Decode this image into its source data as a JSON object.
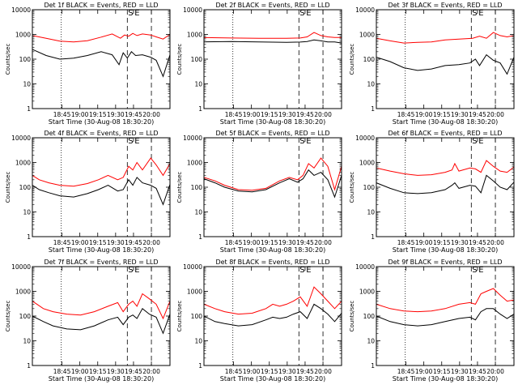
{
  "chart_data": [
    {
      "type": "line",
      "title": "Det 1f BLACK = Events, RED = LLD",
      "xlabel": "Start Time (30-Aug-08 18:30:20)",
      "ylabel": "Counts/sec",
      "yscale": "log",
      "ylim": [
        1,
        10000
      ],
      "xticks": [
        "18:45",
        "19:00",
        "19:15",
        "19:30",
        "19:45",
        "20:00"
      ],
      "yticks": [
        "1",
        "10",
        "100",
        "1000",
        "10000"
      ],
      "markers": [
        "S",
        "E"
      ],
      "series": [
        {
          "color": "#ff0000",
          "x": [
            0,
            0.1,
            0.2,
            0.3,
            0.4,
            0.5,
            0.58,
            0.64,
            0.67,
            0.7,
            0.73,
            0.76,
            0.8,
            0.86,
            0.9,
            0.95,
            1
          ],
          "values": [
            900,
            700,
            540,
            500,
            560,
            780,
            1050,
            700,
            950,
            850,
            1100,
            900,
            1050,
            950,
            800,
            650,
            1000
          ]
        },
        {
          "color": "#000000",
          "x": [
            0,
            0.1,
            0.2,
            0.3,
            0.4,
            0.5,
            0.58,
            0.63,
            0.66,
            0.69,
            0.72,
            0.75,
            0.8,
            0.86,
            0.9,
            0.95,
            1
          ],
          "values": [
            250,
            140,
            100,
            110,
            140,
            200,
            150,
            60,
            180,
            110,
            200,
            140,
            150,
            120,
            90,
            20,
            150
          ]
        }
      ]
    },
    {
      "type": "line",
      "title": "Det 2f BLACK = Events, RED = LLD",
      "xlabel": "Start Time (30-Aug-08 18:30:20)",
      "ylabel": "Counts/sec",
      "yscale": "log",
      "ylim": [
        1,
        10000
      ],
      "xticks": [
        "18:45",
        "19:00",
        "19:15",
        "19:30",
        "19:45",
        "20:00"
      ],
      "yticks": [
        "1",
        "10",
        "100",
        "1000",
        "10000"
      ],
      "markers": [
        "S",
        "E"
      ],
      "series": [
        {
          "color": "#ff0000",
          "x": [
            0,
            0.2,
            0.4,
            0.6,
            0.7,
            0.75,
            0.8,
            0.85,
            0.9,
            0.95,
            1
          ],
          "values": [
            750,
            720,
            700,
            700,
            720,
            800,
            1200,
            900,
            800,
            750,
            750
          ]
        },
        {
          "color": "#000000",
          "x": [
            0,
            0.2,
            0.4,
            0.6,
            0.7,
            0.75,
            0.8,
            0.85,
            0.9,
            0.95,
            1
          ],
          "values": [
            500,
            520,
            500,
            480,
            490,
            520,
            600,
            550,
            500,
            500,
            450
          ]
        }
      ]
    },
    {
      "type": "line",
      "title": "Det 3f BLACK = Events, RED = LLD",
      "xlabel": "Start Time (30-Aug-08 18:30:20)",
      "ylabel": "Counts/sec",
      "yscale": "log",
      "ylim": [
        1,
        10000
      ],
      "xticks": [
        "18:45",
        "19:00",
        "19:15",
        "19:30",
        "19:45",
        "20:00"
      ],
      "yticks": [
        "1",
        "10",
        "100",
        "1000",
        "10000"
      ],
      "markers": [
        "S",
        "E"
      ],
      "series": [
        {
          "color": "#ff0000",
          "x": [
            0,
            0.1,
            0.2,
            0.3,
            0.4,
            0.5,
            0.6,
            0.7,
            0.75,
            0.8,
            0.85,
            0.9,
            0.95,
            1
          ],
          "values": [
            700,
            550,
            450,
            480,
            500,
            600,
            650,
            700,
            850,
            700,
            1200,
            900,
            800,
            900
          ]
        },
        {
          "color": "#000000",
          "x": [
            0,
            0.1,
            0.2,
            0.3,
            0.4,
            0.5,
            0.6,
            0.68,
            0.72,
            0.75,
            0.8,
            0.85,
            0.9,
            0.95,
            1
          ],
          "values": [
            120,
            80,
            45,
            35,
            40,
            55,
            60,
            70,
            100,
            55,
            150,
            90,
            70,
            25,
            120
          ]
        }
      ]
    },
    {
      "type": "line",
      "title": "Det 4f BLACK = Events, RED = LLD",
      "xlabel": "Start Time (30-Aug-08 18:30:20)",
      "ylabel": "Counts/sec",
      "yscale": "log",
      "ylim": [
        1,
        10000
      ],
      "xticks": [
        "18:45",
        "19:00",
        "19:15",
        "19:30",
        "19:45",
        "20:00"
      ],
      "yticks": [
        "1",
        "10",
        "100",
        "1000",
        "10000"
      ],
      "markers": [
        "S",
        "E"
      ],
      "series": [
        {
          "color": "#ff0000",
          "x": [
            0,
            0.05,
            0.12,
            0.2,
            0.3,
            0.4,
            0.48,
            0.55,
            0.62,
            0.66,
            0.7,
            0.73,
            0.76,
            0.8,
            0.86,
            0.9,
            0.95,
            1
          ],
          "values": [
            300,
            200,
            150,
            120,
            110,
            140,
            200,
            300,
            200,
            250,
            700,
            500,
            1000,
            500,
            1500,
            800,
            300,
            900
          ]
        },
        {
          "color": "#000000",
          "x": [
            0,
            0.05,
            0.12,
            0.2,
            0.3,
            0.4,
            0.48,
            0.55,
            0.62,
            0.66,
            0.7,
            0.73,
            0.76,
            0.8,
            0.86,
            0.9,
            0.95,
            1
          ],
          "values": [
            120,
            80,
            60,
            45,
            40,
            55,
            80,
            120,
            70,
            80,
            200,
            120,
            250,
            150,
            120,
            90,
            20,
            130
          ]
        }
      ]
    },
    {
      "type": "line",
      "title": "Det 5f BLACK = Events, RED = LLD",
      "xlabel": "Start Time (30-Aug-08 18:30:20)",
      "ylabel": "Counts/sec",
      "yscale": "log",
      "ylim": [
        1,
        10000
      ],
      "xticks": [
        "18:45",
        "19:00",
        "19:15",
        "19:30",
        "19:45",
        "20:00"
      ],
      "yticks": [
        "1",
        "10",
        "100",
        "1000",
        "10000"
      ],
      "markers": [
        "S",
        "E"
      ],
      "series": [
        {
          "color": "#ff0000",
          "x": [
            0,
            0.08,
            0.15,
            0.25,
            0.35,
            0.45,
            0.55,
            0.62,
            0.68,
            0.72,
            0.76,
            0.8,
            0.85,
            0.9,
            0.95,
            1
          ],
          "values": [
            250,
            180,
            120,
            80,
            75,
            90,
            180,
            250,
            200,
            300,
            900,
            600,
            1500,
            700,
            80,
            700
          ]
        },
        {
          "color": "#000000",
          "x": [
            0,
            0.08,
            0.15,
            0.25,
            0.35,
            0.45,
            0.55,
            0.62,
            0.68,
            0.72,
            0.76,
            0.8,
            0.85,
            0.9,
            0.95,
            1
          ],
          "values": [
            220,
            150,
            100,
            70,
            65,
            80,
            150,
            220,
            160,
            220,
            500,
            300,
            400,
            200,
            40,
            300
          ]
        }
      ]
    },
    {
      "type": "line",
      "title": "Det 6f BLACK = Events, RED = LLD",
      "xlabel": "Start Time (30-Aug-08 18:30:20)",
      "ylabel": "Counts/sec",
      "yscale": "log",
      "ylim": [
        1,
        10000
      ],
      "xticks": [
        "18:45",
        "19:00",
        "19:15",
        "19:30",
        "19:45",
        "20:00"
      ],
      "yticks": [
        "1",
        "10",
        "100",
        "1000",
        "10000"
      ],
      "markers": [
        "S",
        "E"
      ],
      "series": [
        {
          "color": "#ff0000",
          "x": [
            0,
            0.1,
            0.2,
            0.3,
            0.4,
            0.5,
            0.55,
            0.57,
            0.6,
            0.68,
            0.72,
            0.76,
            0.8,
            0.85,
            0.9,
            0.95,
            1
          ],
          "values": [
            600,
            450,
            350,
            300,
            320,
            400,
            500,
            900,
            450,
            600,
            550,
            400,
            1200,
            700,
            450,
            400,
            650
          ]
        },
        {
          "color": "#000000",
          "x": [
            0,
            0.1,
            0.2,
            0.3,
            0.4,
            0.5,
            0.55,
            0.57,
            0.6,
            0.68,
            0.72,
            0.76,
            0.8,
            0.85,
            0.9,
            0.95,
            1
          ],
          "values": [
            150,
            90,
            60,
            55,
            60,
            80,
            120,
            150,
            90,
            120,
            110,
            60,
            300,
            180,
            100,
            80,
            160
          ]
        }
      ]
    },
    {
      "type": "line",
      "title": "Det 7f BLACK = Events, RED = LLD",
      "xlabel": "Start Time (30-Aug-08 18:30:20)",
      "ylabel": "Counts/sec",
      "yscale": "log",
      "ylim": [
        1,
        10000
      ],
      "xticks": [
        "18:45",
        "19:00",
        "19:15",
        "19:30",
        "19:45",
        "20:00"
      ],
      "yticks": [
        "1",
        "10",
        "100",
        "1000",
        "10000"
      ],
      "markers": [
        "S",
        "E"
      ],
      "series": [
        {
          "color": "#ff0000",
          "x": [
            0,
            0.08,
            0.15,
            0.25,
            0.35,
            0.45,
            0.55,
            0.62,
            0.66,
            0.7,
            0.73,
            0.76,
            0.8,
            0.85,
            0.9,
            0.95,
            1
          ],
          "values": [
            400,
            200,
            150,
            120,
            110,
            150,
            250,
            350,
            150,
            300,
            400,
            250,
            800,
            500,
            300,
            80,
            400
          ]
        },
        {
          "color": "#000000",
          "x": [
            0,
            0.08,
            0.15,
            0.25,
            0.35,
            0.45,
            0.55,
            0.62,
            0.66,
            0.7,
            0.73,
            0.76,
            0.8,
            0.85,
            0.9,
            0.95,
            1
          ],
          "values": [
            100,
            60,
            40,
            30,
            28,
            40,
            70,
            90,
            45,
            90,
            110,
            80,
            200,
            120,
            90,
            20,
            120
          ]
        }
      ]
    },
    {
      "type": "line",
      "title": "Det 8f BLACK = Events, RED = LLD",
      "xlabel": "Start Time (30-Aug-08 18:30:20)",
      "ylabel": "Counts/sec",
      "yscale": "log",
      "ylim": [
        1,
        10000
      ],
      "xticks": [
        "18:45",
        "19:00",
        "19:15",
        "19:30",
        "19:45",
        "20:00"
      ],
      "yticks": [
        "1",
        "10",
        "100",
        "1000",
        "10000"
      ],
      "markers": [
        "S",
        "E"
      ],
      "series": [
        {
          "color": "#ff0000",
          "x": [
            0,
            0.08,
            0.15,
            0.25,
            0.35,
            0.45,
            0.5,
            0.55,
            0.6,
            0.65,
            0.7,
            0.75,
            0.8,
            0.85,
            0.9,
            0.95,
            1
          ],
          "values": [
            300,
            200,
            150,
            120,
            130,
            200,
            300,
            250,
            300,
            400,
            600,
            250,
            1500,
            800,
            400,
            200,
            400
          ]
        },
        {
          "color": "#000000",
          "x": [
            0,
            0.08,
            0.15,
            0.25,
            0.35,
            0.45,
            0.5,
            0.55,
            0.6,
            0.65,
            0.7,
            0.75,
            0.8,
            0.85,
            0.9,
            0.95,
            1
          ],
          "values": [
            100,
            60,
            50,
            40,
            45,
            70,
            90,
            80,
            90,
            120,
            150,
            80,
            300,
            200,
            120,
            60,
            130
          ]
        }
      ]
    },
    {
      "type": "line",
      "title": "Det 9f BLACK = Events, RED = LLD",
      "xlabel": "Start Time (30-Aug-08 18:30:20)",
      "ylabel": "Counts/sec",
      "yscale": "log",
      "ylim": [
        1,
        10000
      ],
      "xticks": [
        "18:45",
        "19:00",
        "19:15",
        "19:30",
        "19:45",
        "20:00"
      ],
      "yticks": [
        "1",
        "10",
        "100",
        "1000",
        "10000"
      ],
      "markers": [
        "S",
        "E"
      ],
      "series": [
        {
          "color": "#ff0000",
          "x": [
            0,
            0.1,
            0.2,
            0.3,
            0.4,
            0.5,
            0.6,
            0.68,
            0.72,
            0.76,
            0.8,
            0.85,
            0.9,
            0.95,
            1
          ],
          "values": [
            300,
            200,
            160,
            150,
            160,
            200,
            300,
            350,
            300,
            800,
            1000,
            1300,
            700,
            400,
            450
          ]
        },
        {
          "color": "#000000",
          "x": [
            0,
            0.1,
            0.2,
            0.3,
            0.4,
            0.5,
            0.6,
            0.68,
            0.72,
            0.76,
            0.8,
            0.85,
            0.9,
            0.95,
            1
          ],
          "values": [
            100,
            60,
            45,
            40,
            45,
            60,
            80,
            90,
            70,
            150,
            200,
            200,
            120,
            80,
            120
          ]
        }
      ]
    }
  ]
}
